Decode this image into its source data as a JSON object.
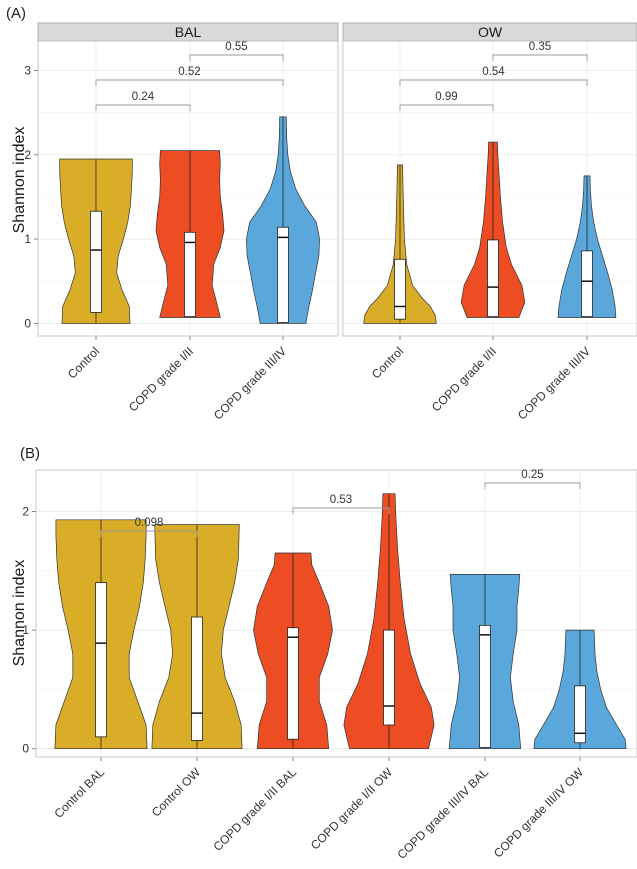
{
  "panel_a": {
    "label": "(A)"
  },
  "panel_b": {
    "label": "(B)"
  },
  "colors": {
    "control": "#d9ad27",
    "copd12": "#ee4d24",
    "copd34": "#5aa7db"
  },
  "chart_data": [
    {
      "type": "violin",
      "panel": "(A)",
      "ylabel": "Shannon index",
      "ylim": [
        -0.15,
        3.35
      ],
      "yticks": [
        0,
        1,
        2,
        3
      ],
      "grid": true,
      "legend": "none",
      "facets": [
        {
          "title": "BAL",
          "categories": [
            "Control",
            "COPD grade I/II",
            "COPD grade III/IV"
          ],
          "groups": [
            {
              "category": "Control",
              "color": "control",
              "min": 0,
              "q1": 0.13,
              "median": 0.87,
              "q3": 1.33,
              "max": 1.95,
              "density": [
                [
                  0,
                  0.92
                ],
                [
                  0.2,
                  0.9
                ],
                [
                  0.4,
                  0.7
                ],
                [
                  0.6,
                  0.56
                ],
                [
                  0.8,
                  0.6
                ],
                [
                  1.0,
                  0.74
                ],
                [
                  1.2,
                  0.86
                ],
                [
                  1.4,
                  0.93
                ],
                [
                  1.6,
                  0.96
                ],
                [
                  1.8,
                  0.98
                ],
                [
                  1.95,
                  0.98
                ]
              ]
            },
            {
              "category": "COPD grade I/II",
              "color": "copd12",
              "min": 0.07,
              "q1": 0.08,
              "median": 0.96,
              "q3": 1.08,
              "max": 2.05,
              "density": [
                [
                  0.07,
                  0.82
                ],
                [
                  0.25,
                  0.72
                ],
                [
                  0.45,
                  0.6
                ],
                [
                  0.7,
                  0.64
                ],
                [
                  0.9,
                  0.82
                ],
                [
                  1.1,
                  0.92
                ],
                [
                  1.3,
                  0.88
                ],
                [
                  1.5,
                  0.82
                ],
                [
                  1.7,
                  0.8
                ],
                [
                  1.9,
                  0.82
                ],
                [
                  2.05,
                  0.8
                ]
              ]
            },
            {
              "category": "COPD grade III/IV",
              "color": "copd34",
              "min": 0,
              "q1": 0.01,
              "median": 1.02,
              "q3": 1.14,
              "max": 2.45,
              "density": [
                [
                  0,
                  0.62
                ],
                [
                  0.2,
                  0.7
                ],
                [
                  0.4,
                  0.8
                ],
                [
                  0.6,
                  0.88
                ],
                [
                  0.8,
                  0.97
                ],
                [
                  1.0,
                  0.99
                ],
                [
                  1.2,
                  0.9
                ],
                [
                  1.4,
                  0.58
                ],
                [
                  1.6,
                  0.34
                ],
                [
                  1.8,
                  0.2
                ],
                [
                  2.0,
                  0.13
                ],
                [
                  2.2,
                  0.1
                ],
                [
                  2.45,
                  0.09
                ]
              ]
            }
          ],
          "comparisons": [
            {
              "from": "Control",
              "to": "COPD grade I/II",
              "p": "0.24"
            },
            {
              "from": "Control",
              "to": "COPD grade III/IV",
              "p": "0.52"
            },
            {
              "from": "COPD grade I/II",
              "to": "COPD grade III/IV",
              "p": "0.55"
            }
          ]
        },
        {
          "title": "OW",
          "categories": [
            "Control",
            "COPD grade I/II",
            "COPD grade III/IV"
          ],
          "groups": [
            {
              "category": "Control",
              "color": "control",
              "min": 0,
              "q1": 0.05,
              "median": 0.2,
              "q3": 0.76,
              "max": 1.88,
              "density": [
                [
                  0,
                  0.98
                ],
                [
                  0.1,
                  0.95
                ],
                [
                  0.2,
                  0.82
                ],
                [
                  0.3,
                  0.6
                ],
                [
                  0.45,
                  0.34
                ],
                [
                  0.7,
                  0.18
                ],
                [
                  1.0,
                  0.12
                ],
                [
                  1.3,
                  0.1
                ],
                [
                  1.6,
                  0.08
                ],
                [
                  1.88,
                  0.07
                ]
              ]
            },
            {
              "category": "COPD grade I/II",
              "color": "copd12",
              "min": 0.07,
              "q1": 0.08,
              "median": 0.43,
              "q3": 0.99,
              "max": 2.15,
              "density": [
                [
                  0.07,
                  0.7
                ],
                [
                  0.25,
                  0.86
                ],
                [
                  0.45,
                  0.78
                ],
                [
                  0.7,
                  0.5
                ],
                [
                  0.9,
                  0.36
                ],
                [
                  1.2,
                  0.26
                ],
                [
                  1.5,
                  0.2
                ],
                [
                  1.8,
                  0.16
                ],
                [
                  2.0,
                  0.13
                ],
                [
                  2.15,
                  0.12
                ]
              ]
            },
            {
              "category": "COPD grade III/IV",
              "color": "copd34",
              "min": 0.07,
              "q1": 0.08,
              "median": 0.5,
              "q3": 0.86,
              "max": 1.75,
              "density": [
                [
                  0.07,
                  0.78
                ],
                [
                  0.2,
                  0.76
                ],
                [
                  0.4,
                  0.68
                ],
                [
                  0.6,
                  0.56
                ],
                [
                  0.8,
                  0.42
                ],
                [
                  1.0,
                  0.28
                ],
                [
                  1.2,
                  0.18
                ],
                [
                  1.4,
                  0.12
                ],
                [
                  1.6,
                  0.09
                ],
                [
                  1.75,
                  0.08
                ]
              ]
            }
          ],
          "comparisons": [
            {
              "from": "Control",
              "to": "COPD grade I/II",
              "p": "0.99"
            },
            {
              "from": "Control",
              "to": "COPD grade III/IV",
              "p": "0.54"
            },
            {
              "from": "COPD grade I/II",
              "to": "COPD grade III/IV",
              "p": "0.35"
            }
          ]
        }
      ]
    },
    {
      "type": "violin",
      "panel": "(B)",
      "ylabel": "Shannon index",
      "ylim": [
        -0.07,
        2.35
      ],
      "yticks": [
        0,
        1,
        2
      ],
      "grid": true,
      "legend": "none",
      "categories": [
        "Control BAL",
        "Control OW",
        "COPD grade I/II BAL",
        "COPD grade I/II OW",
        "COPD grade III/IV BAL",
        "COPD grade III/IV OW"
      ],
      "groups": [
        {
          "category": "Control BAL",
          "color": "control",
          "min": 0,
          "q1": 0.1,
          "median": 0.89,
          "q3": 1.4,
          "max": 1.93,
          "density": [
            [
              0,
              0.98
            ],
            [
              0.2,
              0.96
            ],
            [
              0.4,
              0.78
            ],
            [
              0.6,
              0.6
            ],
            [
              0.8,
              0.6
            ],
            [
              1.0,
              0.7
            ],
            [
              1.2,
              0.82
            ],
            [
              1.4,
              0.9
            ],
            [
              1.6,
              0.94
            ],
            [
              1.8,
              0.96
            ],
            [
              1.93,
              0.96
            ]
          ]
        },
        {
          "category": "Control OW",
          "color": "control",
          "min": 0,
          "q1": 0.07,
          "median": 0.3,
          "q3": 1.11,
          "max": 1.89,
          "density": [
            [
              0,
              0.96
            ],
            [
              0.2,
              0.94
            ],
            [
              0.4,
              0.8
            ],
            [
              0.6,
              0.6
            ],
            [
              0.8,
              0.52
            ],
            [
              1.0,
              0.56
            ],
            [
              1.2,
              0.68
            ],
            [
              1.4,
              0.8
            ],
            [
              1.6,
              0.88
            ],
            [
              1.89,
              0.9
            ]
          ]
        },
        {
          "category": "COPD grade I/II BAL",
          "color": "copd12",
          "min": 0,
          "q1": 0.08,
          "median": 0.94,
          "q3": 1.02,
          "max": 1.65,
          "density": [
            [
              0,
              0.76
            ],
            [
              0.2,
              0.72
            ],
            [
              0.4,
              0.56
            ],
            [
              0.6,
              0.56
            ],
            [
              0.8,
              0.74
            ],
            [
              1.0,
              0.84
            ],
            [
              1.2,
              0.76
            ],
            [
              1.4,
              0.56
            ],
            [
              1.55,
              0.4
            ],
            [
              1.65,
              0.38
            ]
          ]
        },
        {
          "category": "COPD grade I/II OW",
          "color": "copd12",
          "min": 0,
          "q1": 0.2,
          "median": 0.36,
          "q3": 1.0,
          "max": 2.15,
          "density": [
            [
              0,
              0.84
            ],
            [
              0.2,
              0.96
            ],
            [
              0.35,
              0.9
            ],
            [
              0.55,
              0.66
            ],
            [
              0.8,
              0.46
            ],
            [
              1.1,
              0.32
            ],
            [
              1.4,
              0.24
            ],
            [
              1.7,
              0.18
            ],
            [
              2.0,
              0.14
            ],
            [
              2.15,
              0.13
            ]
          ]
        },
        {
          "category": "COPD grade III/IV BAL",
          "color": "copd34",
          "min": 0,
          "q1": 0.01,
          "median": 0.96,
          "q3": 1.04,
          "max": 1.47,
          "density": [
            [
              0,
              0.76
            ],
            [
              0.2,
              0.72
            ],
            [
              0.4,
              0.6
            ],
            [
              0.6,
              0.54
            ],
            [
              0.8,
              0.6
            ],
            [
              1.0,
              0.68
            ],
            [
              1.2,
              0.68
            ],
            [
              1.35,
              0.72
            ],
            [
              1.47,
              0.74
            ]
          ]
        },
        {
          "category": "COPD grade III/IV OW",
          "color": "copd34",
          "min": 0,
          "q1": 0.05,
          "median": 0.13,
          "q3": 0.53,
          "max": 1.0,
          "density": [
            [
              0,
              0.98
            ],
            [
              0.08,
              0.96
            ],
            [
              0.2,
              0.78
            ],
            [
              0.35,
              0.56
            ],
            [
              0.5,
              0.44
            ],
            [
              0.65,
              0.36
            ],
            [
              0.8,
              0.32
            ],
            [
              0.9,
              0.31
            ],
            [
              1.0,
              0.3
            ]
          ]
        }
      ],
      "comparisons": [
        {
          "from": "Control BAL",
          "to": "Control OW",
          "p": "0.098"
        },
        {
          "from": "COPD grade I/II BAL",
          "to": "COPD grade I/II OW",
          "p": "0.53"
        },
        {
          "from": "COPD grade III/IV BAL",
          "to": "COPD grade III/IV OW",
          "p": "0.25"
        }
      ]
    }
  ]
}
